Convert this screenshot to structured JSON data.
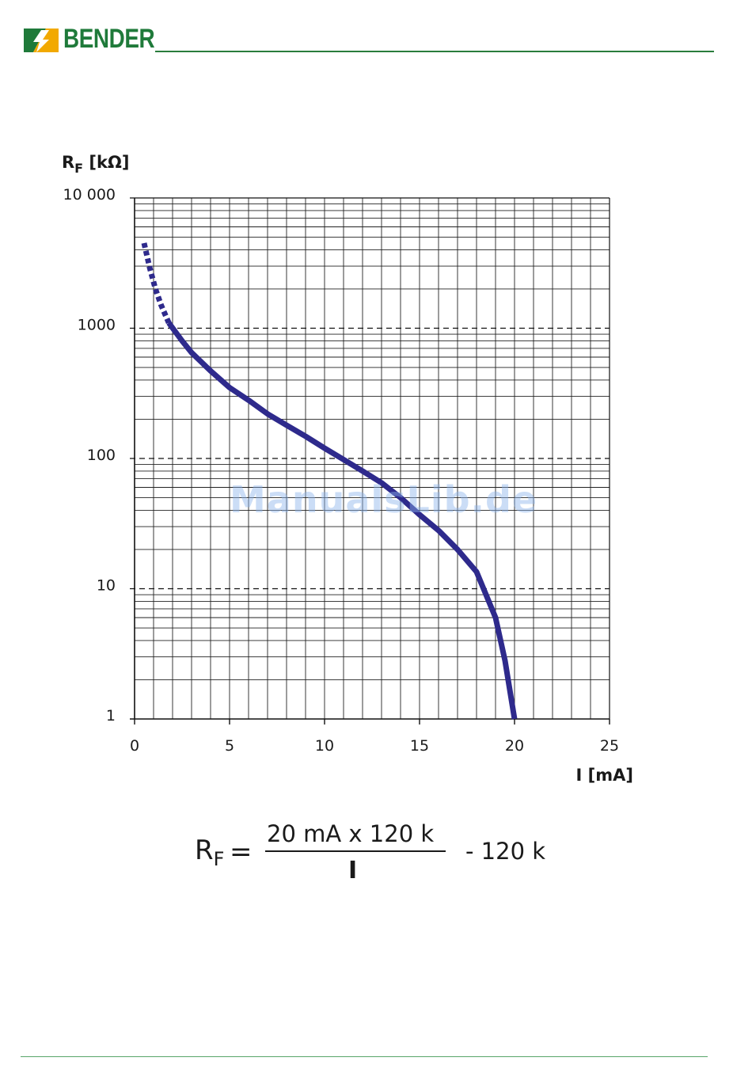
{
  "header": {
    "brand": "BENDER",
    "colors": {
      "brand_green": "#1f7a3a",
      "logo_orange": "#f2a900"
    },
    "logo_icon": "bender-lightning-logo-icon"
  },
  "chart_data": {
    "type": "line",
    "ylabel_main": "R",
    "ylabel_sub": "F",
    "ylabel_unit": " [kΩ]",
    "xlabel": "I [mA]",
    "xlim": [
      0,
      25
    ],
    "ylim": [
      1,
      10000
    ],
    "yscale": "log",
    "grid": true,
    "x_ticks": [
      "0",
      "5",
      "10",
      "15",
      "20",
      "25"
    ],
    "y_ticks": [
      "10 000",
      "1000",
      "100",
      "10",
      "1"
    ],
    "y_tick_values": [
      10000,
      1000,
      100,
      10,
      1
    ],
    "line_color": "#2e2a8c",
    "series": [
      {
        "style": "dashed",
        "x": [
          0.5,
          0.8,
          1.1,
          1.4,
          1.8
        ],
        "y": [
          4500,
          2900,
          2000,
          1500,
          1100
        ]
      },
      {
        "style": "solid",
        "x": [
          1.8,
          2.5,
          3,
          4,
          5,
          6,
          7,
          8,
          9,
          10,
          11,
          12,
          13,
          14,
          15,
          16,
          17,
          18,
          19,
          19.5,
          20
        ],
        "y": [
          1100,
          800,
          650,
          470,
          350,
          280,
          220,
          180,
          148,
          120,
          98,
          80,
          65,
          50,
          37,
          28,
          20,
          13.5,
          6,
          2.8,
          1
        ]
      }
    ]
  },
  "formula": {
    "lhs_main": "R",
    "lhs_sub": "F",
    "equals": "=",
    "numerator": "20 mA x 120 k",
    "denominator": "I",
    "tail": "- 120 k"
  },
  "watermark": "ManualsLib.de"
}
